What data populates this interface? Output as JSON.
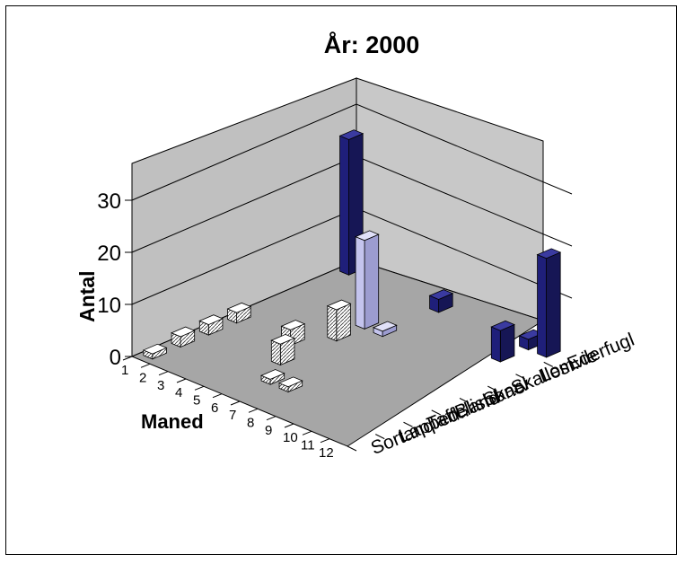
{
  "chart_data": {
    "type": "bar",
    "variant": "3d-bar",
    "title": "År: 2000",
    "xlabel": "Maned",
    "ylabel": "Antal",
    "months": [
      "1",
      "2",
      "3",
      "4",
      "5",
      "6",
      "7",
      "8",
      "9",
      "10",
      "11",
      "12"
    ],
    "species": [
      "Sortand",
      "Lapped..",
      "Taffeland",
      "Blishøne",
      "Skarv",
      "Skalles..",
      "Lomvie",
      "Ederfugl"
    ],
    "y_ticks": [
      "0",
      "10",
      "20",
      "30"
    ],
    "ylim": [
      0,
      35
    ],
    "grid": true,
    "colors": {
      "floor": "#a6a6a6",
      "wall": "#c0c0c0",
      "navy": "#1f1f7a",
      "lavender": "#c4c4ee",
      "hatched": "#ffffff"
    },
    "bars": [
      {
        "species": "Ederfugl",
        "month": 1,
        "value": 26,
        "style": "navy"
      },
      {
        "species": "Ederfugl",
        "month": 6,
        "value": 2.5,
        "style": "navy"
      },
      {
        "species": "Ederfugl",
        "month": 11,
        "value": 2,
        "style": "navy"
      },
      {
        "species": "Ederfugl",
        "month": 12,
        "value": 19,
        "style": "navy"
      },
      {
        "species": "Lomvie",
        "month": 11,
        "value": 6,
        "style": "navy"
      },
      {
        "species": "Skalles..",
        "month": 5,
        "value": 17,
        "style": "lavender"
      },
      {
        "species": "Skalles..",
        "month": 6,
        "value": 1,
        "style": "lavender"
      },
      {
        "species": "Skarv",
        "month": 5,
        "value": 6,
        "style": "hatched"
      },
      {
        "species": "Blishøne",
        "month": 4,
        "value": 3,
        "style": "hatched"
      },
      {
        "species": "Blishøne",
        "month": 1,
        "value": 2,
        "style": "hatched"
      },
      {
        "species": "Taffeland",
        "month": 5,
        "value": 4,
        "style": "hatched"
      },
      {
        "species": "Lapped..",
        "month": 6,
        "value": 1,
        "style": "hatched"
      },
      {
        "species": "Lapped..",
        "month": 7,
        "value": 1,
        "style": "hatched"
      },
      {
        "species": "Taffeland",
        "month": 1,
        "value": 2,
        "style": "hatched"
      },
      {
        "species": "Lapped..",
        "month": 1,
        "value": 2,
        "style": "hatched"
      },
      {
        "species": "Sortand",
        "month": 1,
        "value": 1,
        "style": "hatched"
      }
    ]
  }
}
